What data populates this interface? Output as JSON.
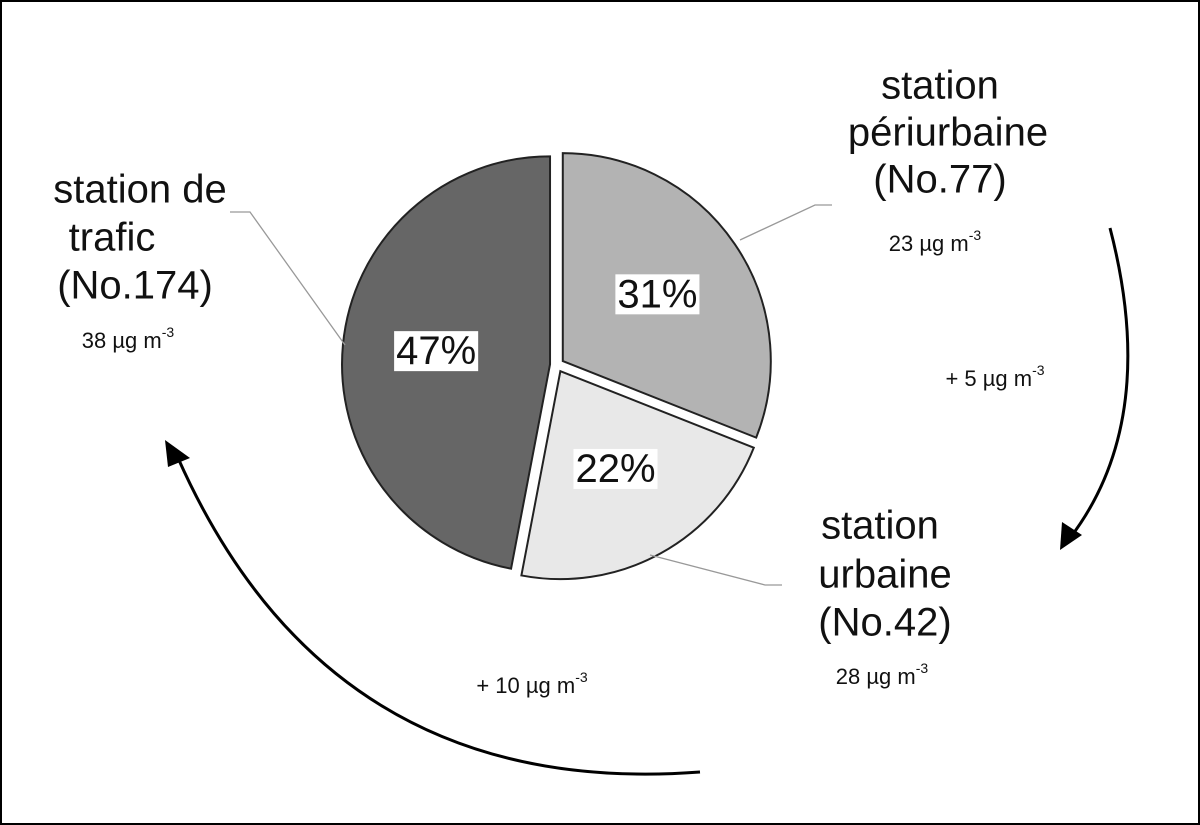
{
  "chart_data": {
    "type": "pie",
    "categories": [
      [
        "station",
        "périurbaine",
        "(No.77)"
      ],
      [
        "station",
        "urbaine",
        "(No.42)"
      ],
      [
        "station de",
        "trafic",
        "(No.174)"
      ]
    ],
    "values": [
      31,
      22,
      47
    ],
    "value_labels": [
      "31%",
      "22%",
      "47%"
    ],
    "colors": [
      "#b3b3b3",
      "#e8e8e8",
      "#666666"
    ],
    "concentrations": [
      {
        "text": "23 µg m",
        "sup": "-3"
      },
      {
        "text": "28 µg m",
        "sup": "-3"
      },
      {
        "text": "38 µg m",
        "sup": "-3"
      }
    ],
    "annotations": [
      {
        "text": "+ 5 µg m",
        "sup": "-3"
      },
      {
        "text": "+ 10 µg m",
        "sup": "-3"
      }
    ]
  }
}
